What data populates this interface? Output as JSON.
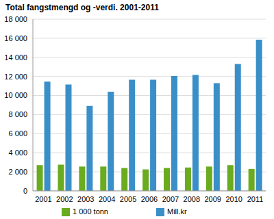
{
  "chart_data": {
    "type": "bar",
    "title": "Total fangstmengd og -verdi. 2001-2011",
    "categories": [
      "2001",
      "2002",
      "2003",
      "2004",
      "2005",
      "2006",
      "2007",
      "2008",
      "2009",
      "2010",
      "2011"
    ],
    "series": [
      {
        "name": "1 000 tonn",
        "color": "#6aab1f",
        "values": [
          2700,
          2750,
          2550,
          2550,
          2400,
          2250,
          2400,
          2450,
          2550,
          2700,
          2300
        ]
      },
      {
        "name": "Mill.kr",
        "color": "#3a8fc8",
        "values": [
          11450,
          11150,
          8900,
          10400,
          11650,
          11650,
          12050,
          12150,
          11300,
          13300,
          15850
        ]
      }
    ],
    "ylim": [
      0,
      18000
    ],
    "yticks": [
      0,
      {
        "value": 2000,
        "label": "2 000"
      },
      {
        "value": 4000,
        "label": "4 000"
      },
      {
        "value": 6000,
        "label": "6 000"
      },
      {
        "value": 8000,
        "label": "8 000"
      },
      {
        "value": 10000,
        "label": "10 000"
      },
      {
        "value": 12000,
        "label": "12 000"
      },
      {
        "value": 14000,
        "label": "14 000"
      },
      {
        "value": 16000,
        "label": "16 000"
      },
      {
        "value": 18000,
        "label": "18 000"
      }
    ],
    "grid": true,
    "legend": "bottom-left"
  }
}
